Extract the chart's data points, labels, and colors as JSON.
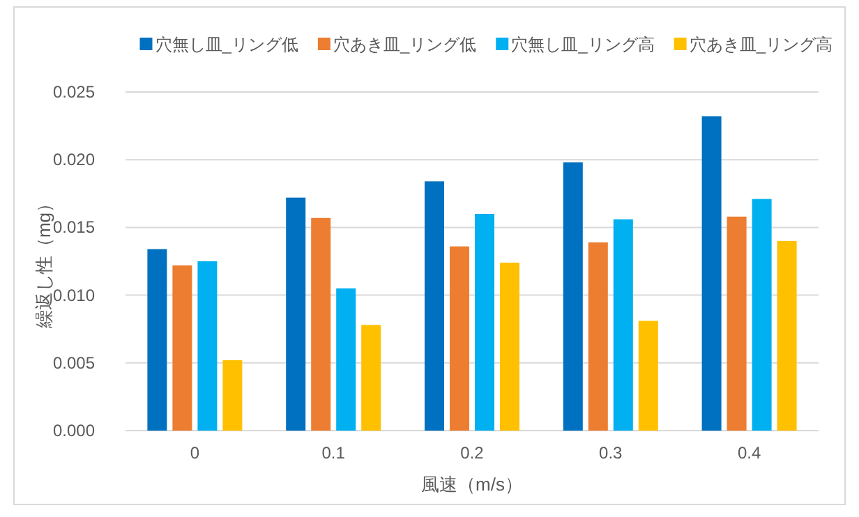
{
  "chart_data": {
    "type": "bar",
    "xlabel": "風速（m/s）",
    "ylabel": "繰返し性（mg）",
    "categories": [
      "0",
      "0.1",
      "0.2",
      "0.3",
      "0.4"
    ],
    "series": [
      {
        "name": "穴無し皿_リング低",
        "color": "#0070c0",
        "values": [
          0.0134,
          0.0172,
          0.0184,
          0.0198,
          0.0232
        ]
      },
      {
        "name": "穴あき皿_リング低",
        "color": "#ed7d31",
        "values": [
          0.0122,
          0.0157,
          0.0136,
          0.0139,
          0.0158
        ]
      },
      {
        "name": "穴無し皿_リング高",
        "color": "#00b0f0",
        "values": [
          0.0125,
          0.0105,
          0.016,
          0.0156,
          0.0171
        ]
      },
      {
        "name": "穴あき皿_リング高",
        "color": "#ffc000",
        "values": [
          0.0052,
          0.0078,
          0.0124,
          0.0081,
          0.014
        ]
      }
    ],
    "ylim": [
      0,
      0.025
    ],
    "yticks": [
      {
        "value": 0,
        "label": "0.000"
      },
      {
        "value": 0.005,
        "label": "0.005"
      },
      {
        "value": 0.01,
        "label": "0.010"
      },
      {
        "value": 0.015,
        "label": "0.015"
      },
      {
        "value": 0.02,
        "label": "0.020"
      },
      {
        "value": 0.025,
        "label": "0.025"
      }
    ],
    "grid": "y",
    "legend": "top"
  }
}
